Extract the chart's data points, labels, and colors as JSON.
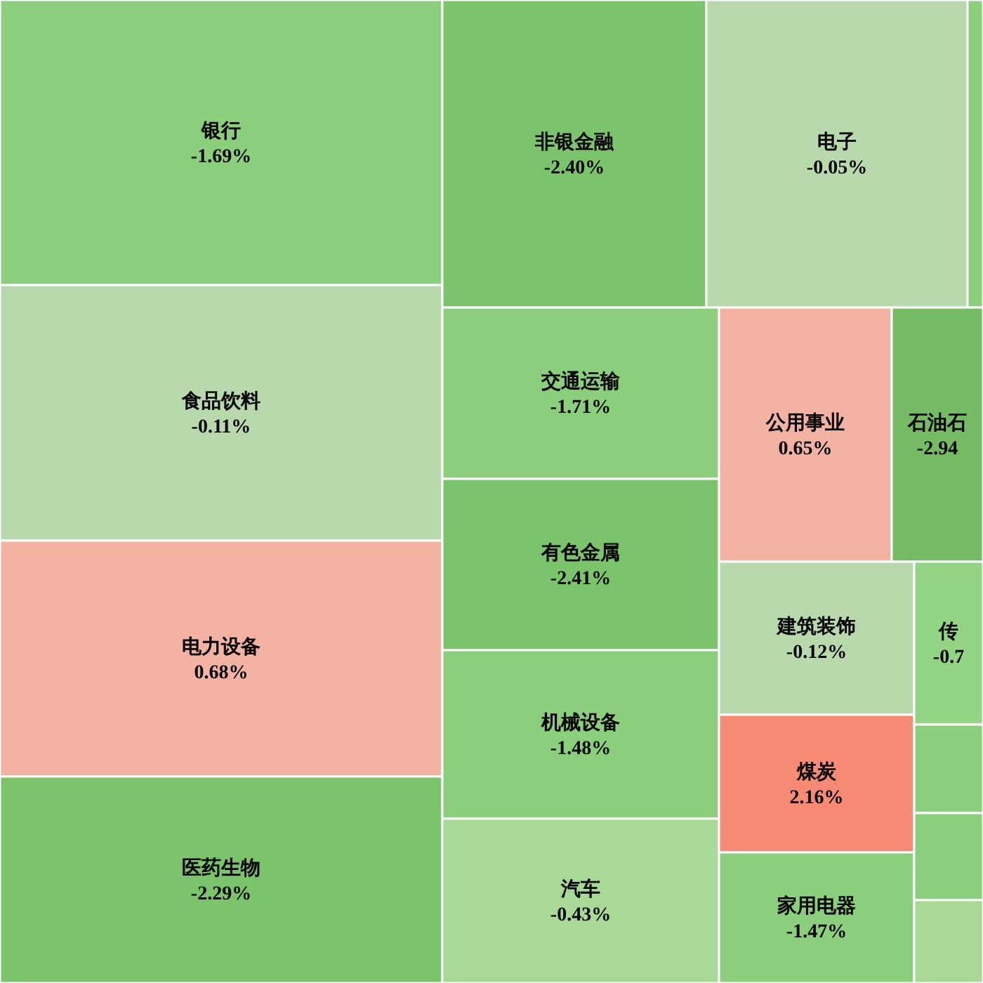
{
  "chart_data": {
    "type": "other",
    "categories": [
      "银行",
      "食品饮料",
      "电力设备",
      "医药生物",
      "非银金融",
      "电子",
      null,
      "交通运输",
      "有色金属",
      "机械设备",
      "汽车",
      "公用事业",
      "石油石",
      "建筑装饰",
      "煤炭",
      "家用电器",
      "传",
      null,
      null,
      null
    ],
    "values": [
      -1.69,
      -0.11,
      0.68,
      -2.29,
      -2.4,
      -0.05,
      null,
      -1.71,
      -2.41,
      -1.48,
      -0.43,
      0.65,
      -2.94,
      -0.12,
      2.16,
      -1.47,
      -0.7,
      null,
      null,
      null
    ],
    "value_labels": [
      "-1.69%",
      "-0.11%",
      "0.68%",
      "-2.29%",
      "-2.40%",
      "-0.05%",
      null,
      "-1.71%",
      "-2.41%",
      "-1.48%",
      "-0.43%",
      "0.65%",
      "-2.94",
      "-0.12%",
      "2.16%",
      "-1.47%",
      "-0.7",
      null,
      null,
      null
    ],
    "colors": [
      "#8bcf7c",
      "#b8d9ac",
      "#f4b2a2",
      "#7cc46c",
      "#7cc46c",
      "#b8d9ac",
      "#8bcf7c",
      "#8bcf7c",
      "#7cc46c",
      "#8bcf7c",
      "#a8d997",
      "#f4b2a2",
      "#74bb64",
      "#b8d9ac",
      "#f98b74",
      "#8bcf7c",
      "#93d584",
      "#8bcf7c",
      "#8bcf7c",
      "#a8d997"
    ]
  }
}
